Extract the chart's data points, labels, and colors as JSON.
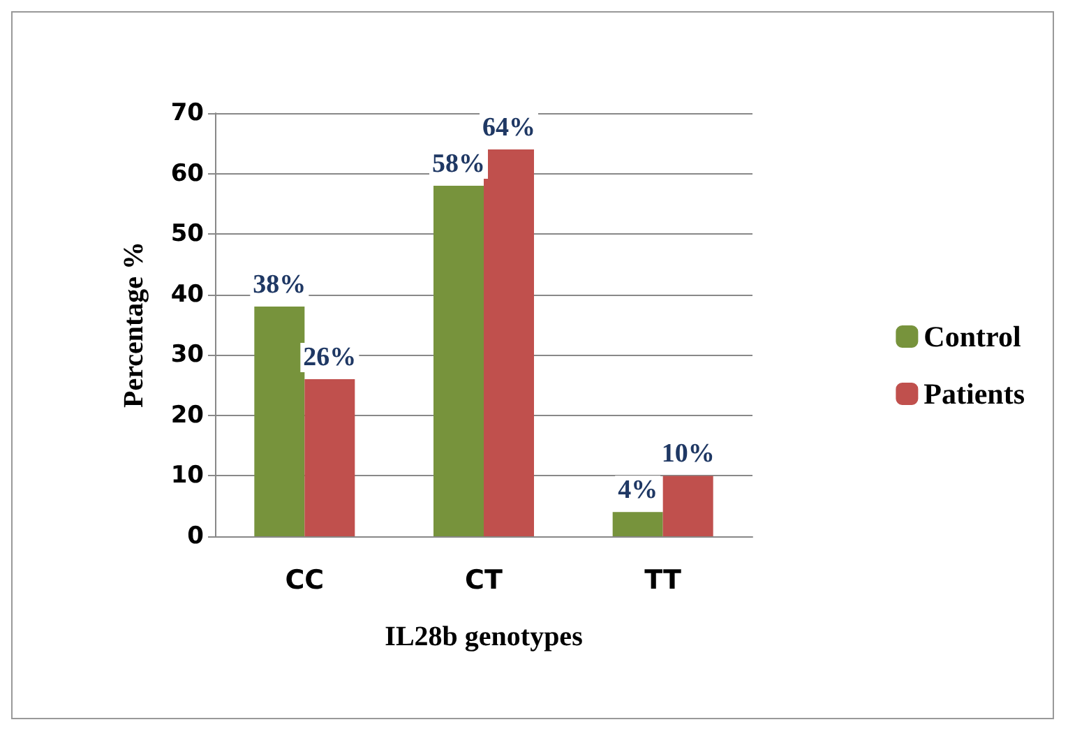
{
  "chart_data": {
    "type": "bar",
    "xlabel": "IL28b genotypes",
    "ylabel": "Percentage %",
    "categories": [
      "CC",
      "CT",
      "TT"
    ],
    "series": [
      {
        "name": "Control",
        "color": "#77933c",
        "values": [
          38,
          58,
          4
        ],
        "value_labels": [
          "38%",
          "58%",
          "4%"
        ]
      },
      {
        "name": "Patients",
        "color": "#c0504d",
        "values": [
          26,
          64,
          10
        ],
        "value_labels": [
          "26%",
          "64%",
          "10%"
        ]
      }
    ],
    "ylim": [
      0,
      70
    ],
    "yticks": [
      0,
      10,
      20,
      30,
      40,
      50,
      60,
      70
    ],
    "grid": true,
    "legend": "right"
  }
}
